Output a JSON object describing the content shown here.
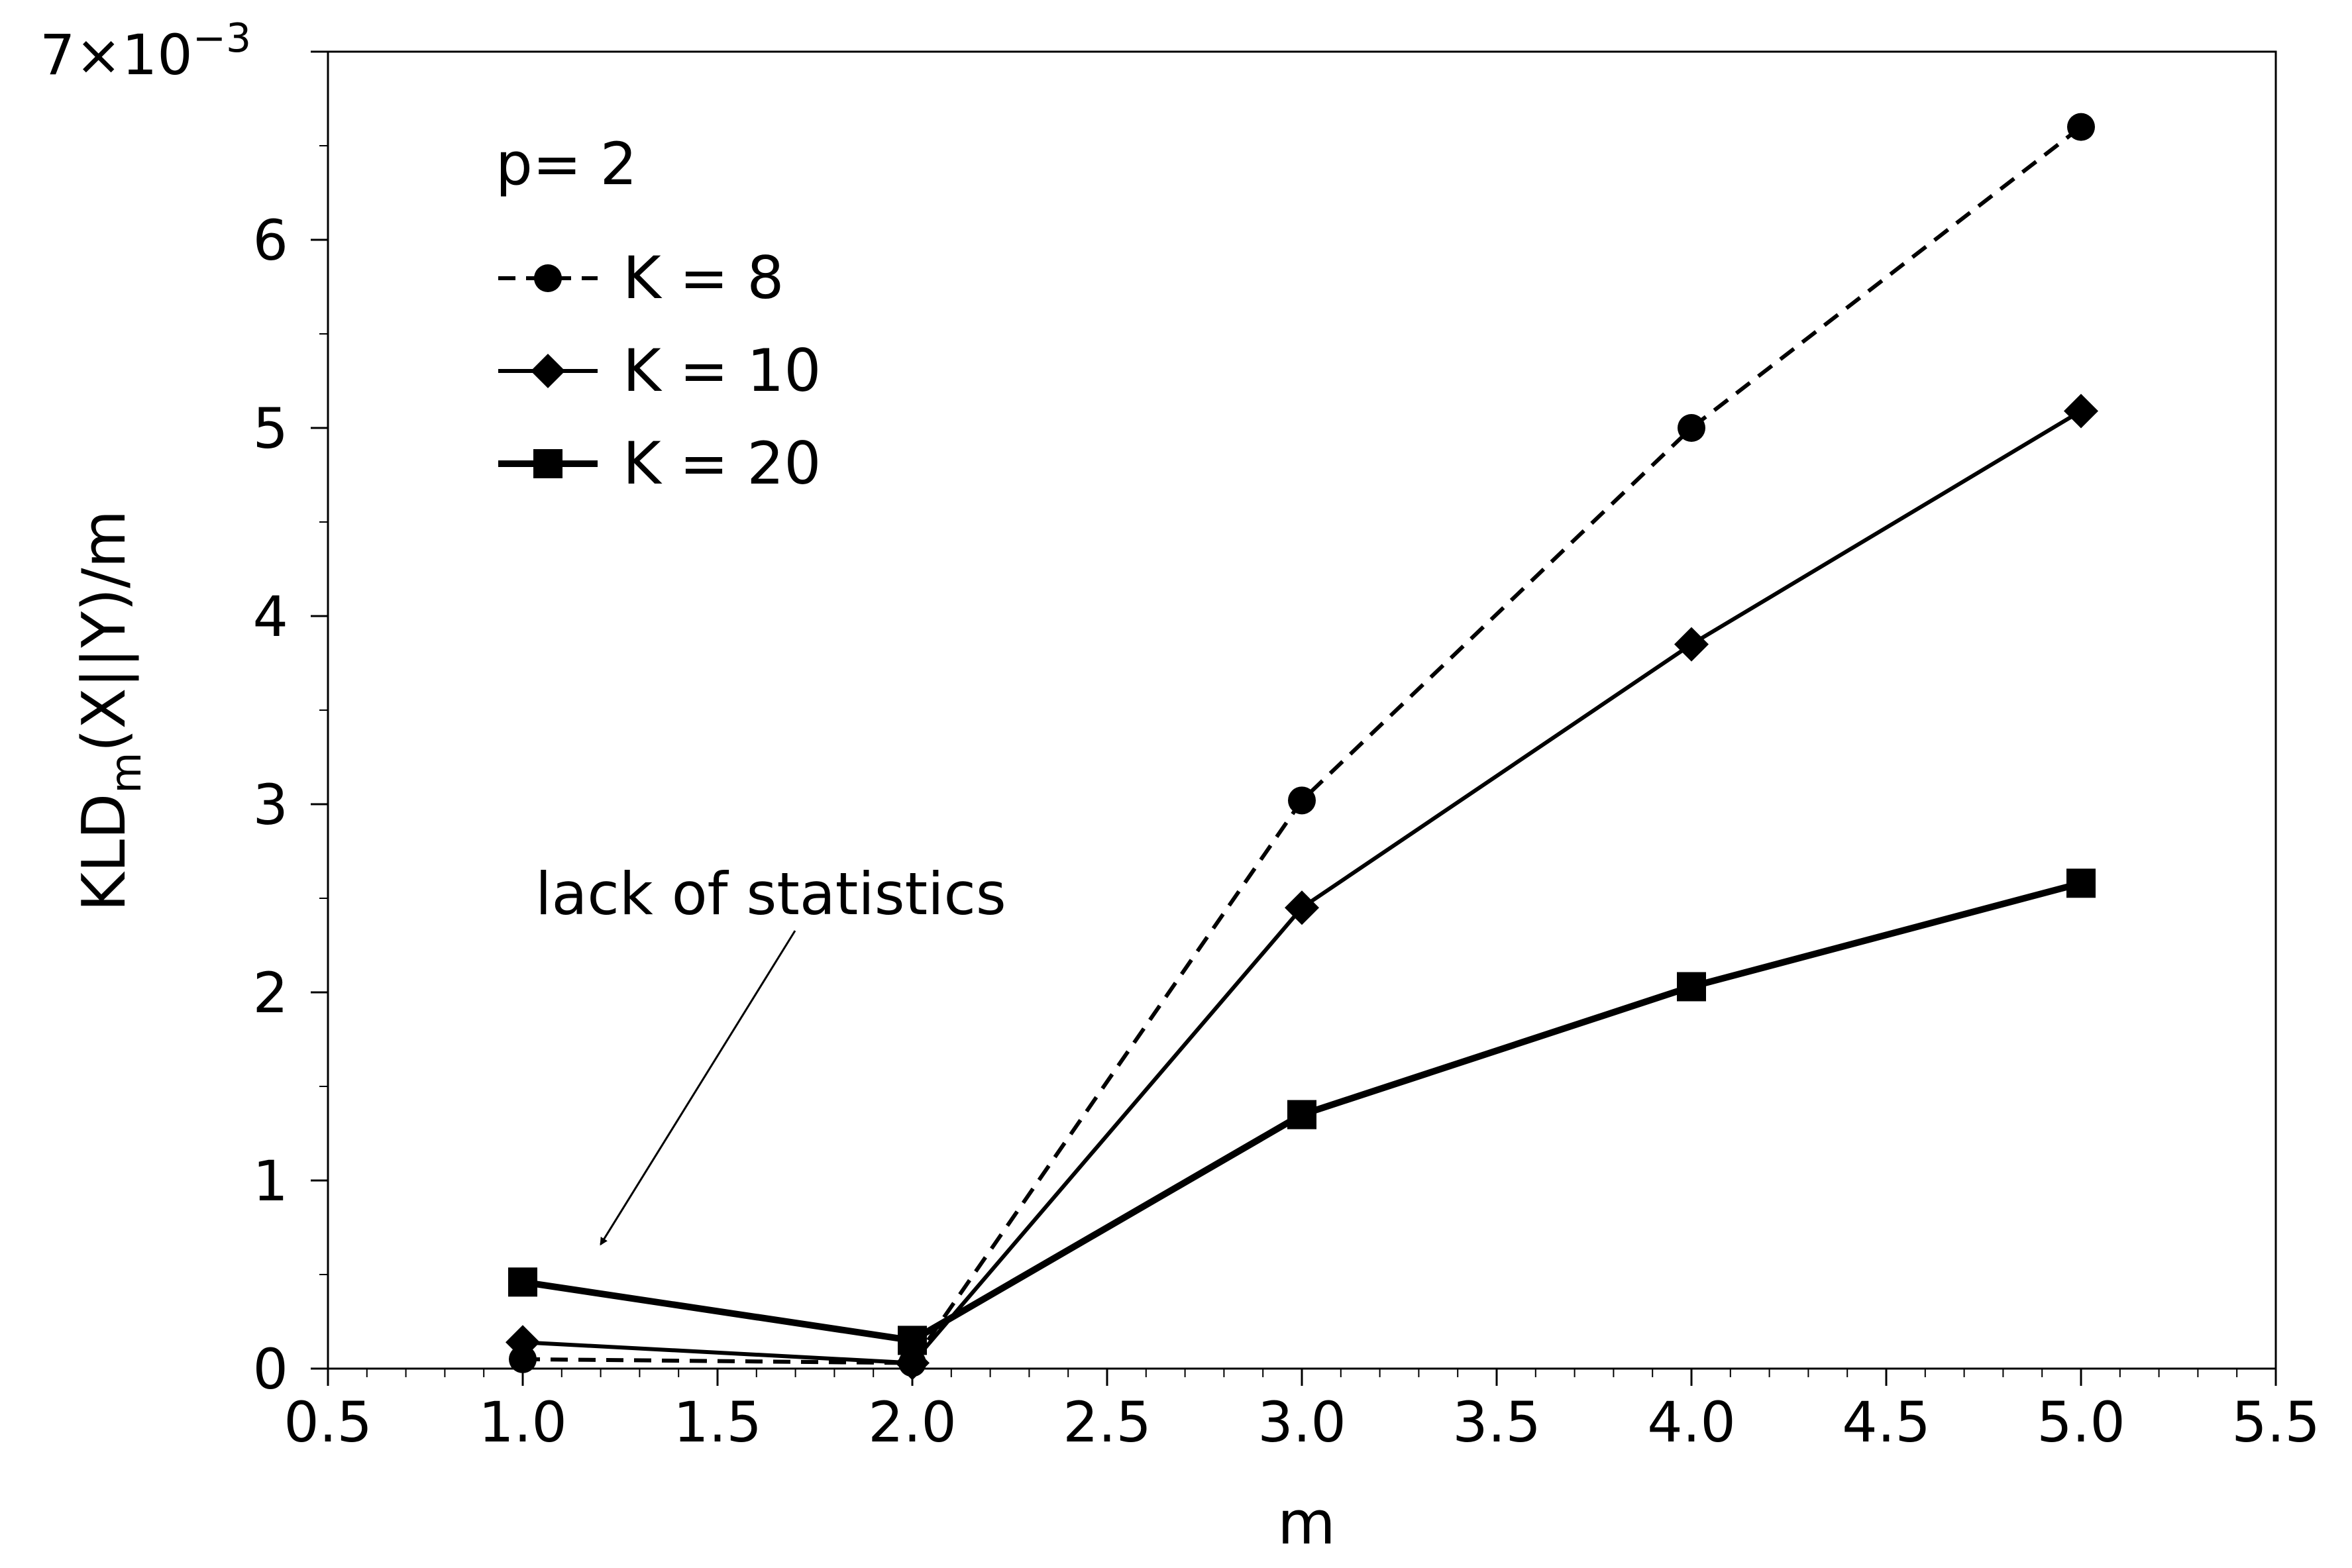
{
  "chart_data": {
    "type": "line",
    "xlabel": "m",
    "ylabel": {
      "base": "KLD",
      "subscript": "m",
      "rest": "(X||Y)/m"
    },
    "y_multiplier": {
      "base": "7×10",
      "exponent": "−3"
    },
    "xlim": [
      0.5,
      5.5
    ],
    "ylim": [
      0,
      7
    ],
    "x_ticks": [
      0.5,
      1.0,
      1.5,
      2.0,
      2.5,
      3.0,
      3.5,
      4.0,
      4.5,
      5.0,
      5.5
    ],
    "x_tick_labels": [
      "0.5",
      "1.0",
      "1.5",
      "2.0",
      "2.5",
      "3.0",
      "3.5",
      "4.0",
      "4.5",
      "5.0",
      "5.5"
    ],
    "y_ticks": [
      0,
      1,
      2,
      3,
      4,
      5,
      6
    ],
    "y_tick_labels": [
      "0",
      "1",
      "2",
      "3",
      "4",
      "5",
      "6"
    ],
    "grid": false,
    "legend_title": "p= 2",
    "legend_position": "top-left",
    "annotation": {
      "text": "lack of statistics",
      "points_to": [
        1.2,
        0.66
      ]
    },
    "x": [
      1,
      2,
      3,
      4,
      5
    ],
    "series": [
      {
        "name": "K = 8",
        "marker": "circle",
        "line": "dashed",
        "values": [
          5e-05,
          3e-05,
          0.00302,
          0.005,
          0.0066
        ]
      },
      {
        "name": "K = 10",
        "marker": "diamond",
        "line": "solid",
        "values": [
          0.00014,
          3e-05,
          0.00245,
          0.00385,
          0.00509
        ]
      },
      {
        "name": "K = 20",
        "marker": "square",
        "line": "thick",
        "values": [
          0.00046,
          0.00015,
          0.00135,
          0.00203,
          0.00258
        ]
      }
    ]
  }
}
